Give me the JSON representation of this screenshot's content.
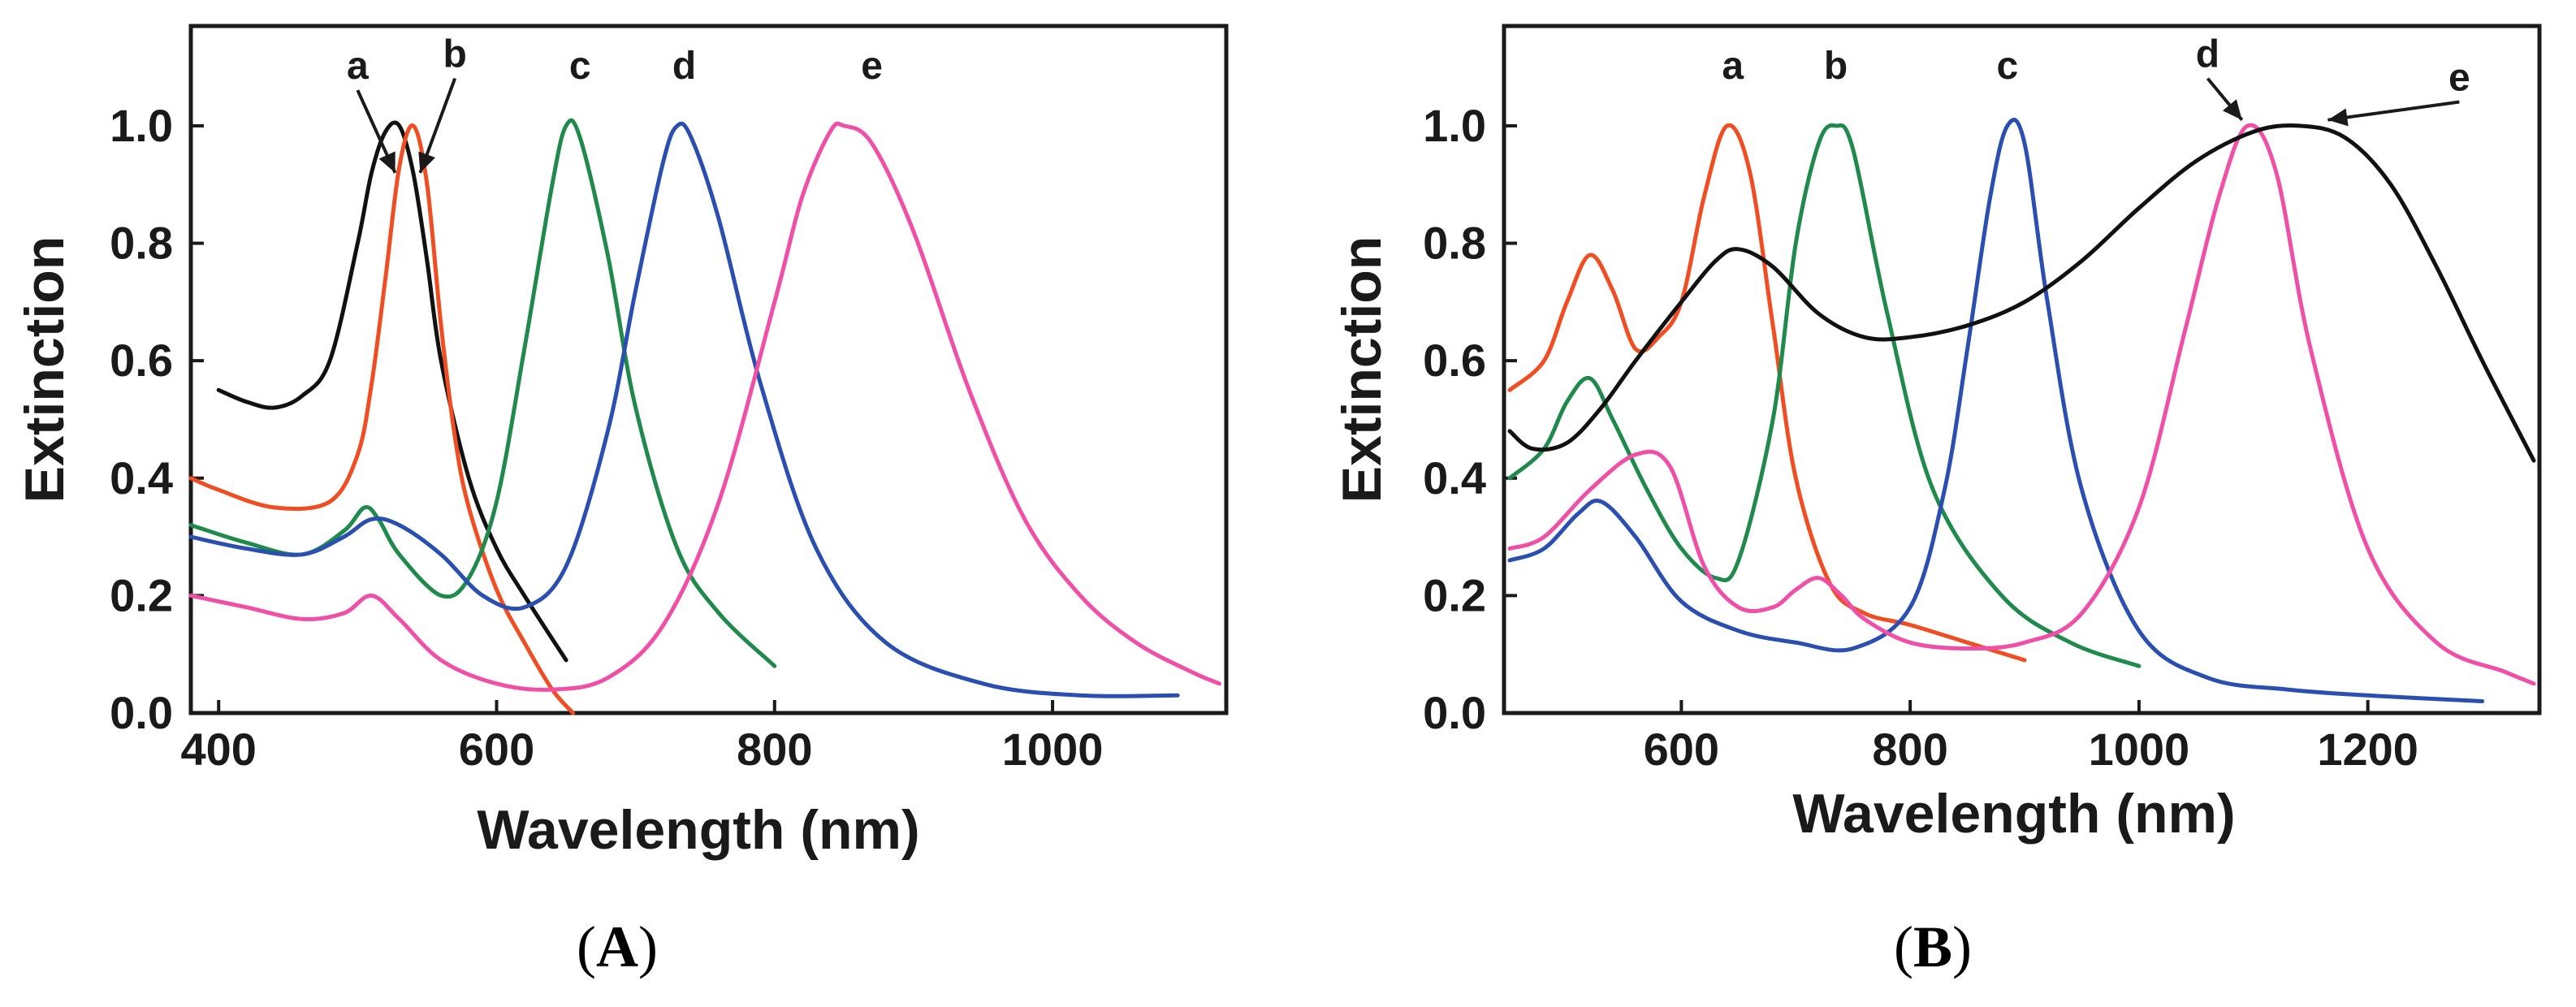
{
  "chart_data": [
    {
      "type": "line",
      "panel": "A",
      "caption_letter": "A",
      "xlabel": "Wavelength (nm)",
      "ylabel": "Extinction",
      "xlim": [
        380,
        1125
      ],
      "ylim": [
        0.0,
        1.17
      ],
      "xticks": [
        400,
        600,
        800,
        1000
      ],
      "yticks": [
        0.0,
        0.2,
        0.4,
        0.6,
        0.8,
        1.0
      ],
      "ytick_labels": [
        "0.0",
        "0.2",
        "0.4",
        "0.6",
        "0.8",
        "1.0"
      ],
      "grid": false,
      "series": [
        {
          "name": "a",
          "color": "#111111",
          "x": [
            400,
            420,
            440,
            460,
            480,
            500,
            510,
            520,
            530,
            540,
            550,
            560,
            580,
            600,
            620,
            650
          ],
          "y": [
            0.55,
            0.53,
            0.52,
            0.54,
            0.6,
            0.8,
            0.92,
            0.99,
            1.0,
            0.92,
            0.77,
            0.6,
            0.4,
            0.28,
            0.2,
            0.09
          ]
        },
        {
          "name": "b",
          "color": "#f04d23",
          "x": [
            380,
            400,
            440,
            480,
            500,
            510,
            520,
            530,
            540,
            550,
            560,
            570,
            580,
            600,
            620,
            640,
            655
          ],
          "y": [
            0.4,
            0.38,
            0.35,
            0.36,
            0.44,
            0.56,
            0.74,
            0.93,
            1.0,
            0.9,
            0.66,
            0.47,
            0.35,
            0.21,
            0.12,
            0.04,
            0.0
          ]
        },
        {
          "name": "c",
          "color": "#1f8a4c",
          "x": [
            380,
            420,
            460,
            490,
            505,
            515,
            530,
            560,
            580,
            600,
            620,
            640,
            650,
            660,
            680,
            700,
            730,
            760,
            800
          ],
          "y": [
            0.32,
            0.29,
            0.27,
            0.31,
            0.35,
            0.33,
            0.27,
            0.2,
            0.23,
            0.36,
            0.62,
            0.9,
            1.0,
            0.98,
            0.78,
            0.52,
            0.28,
            0.17,
            0.08
          ]
        },
        {
          "name": "d",
          "color": "#2a4fb0",
          "x": [
            380,
            420,
            460,
            490,
            510,
            530,
            560,
            590,
            620,
            650,
            680,
            700,
            720,
            730,
            740,
            760,
            790,
            830,
            880,
            950,
            1020,
            1090
          ],
          "y": [
            0.3,
            0.28,
            0.27,
            0.3,
            0.33,
            0.32,
            0.27,
            0.2,
            0.18,
            0.25,
            0.48,
            0.72,
            0.94,
            1.0,
            0.98,
            0.84,
            0.56,
            0.28,
            0.12,
            0.05,
            0.03,
            0.03
          ]
        },
        {
          "name": "e",
          "color": "#ef4fa6",
          "x": [
            380,
            420,
            460,
            490,
            510,
            530,
            560,
            600,
            640,
            680,
            720,
            760,
            800,
            820,
            840,
            850,
            870,
            900,
            940,
            980,
            1020,
            1060,
            1100,
            1120
          ],
          "y": [
            0.2,
            0.18,
            0.16,
            0.17,
            0.2,
            0.16,
            0.09,
            0.05,
            0.04,
            0.06,
            0.15,
            0.36,
            0.7,
            0.88,
            0.99,
            1.0,
            0.97,
            0.82,
            0.55,
            0.33,
            0.2,
            0.12,
            0.07,
            0.05
          ]
        }
      ],
      "annotations": [
        {
          "text": "a",
          "x": 500,
          "y": 1.08,
          "arrow_to": [
            527,
            0.92
          ]
        },
        {
          "text": "b",
          "x": 570,
          "y": 1.1,
          "arrow_to": [
            545,
            0.92
          ]
        },
        {
          "text": "c",
          "x": 660,
          "y": 1.08
        },
        {
          "text": "d",
          "x": 735,
          "y": 1.08
        },
        {
          "text": "e",
          "x": 870,
          "y": 1.08
        }
      ]
    },
    {
      "type": "line",
      "panel": "B",
      "caption_letter": "B",
      "xlabel": "Wavelength (nm)",
      "ylabel": "Extinction",
      "xlim": [
        445,
        1350
      ],
      "ylim": [
        0.0,
        1.17
      ],
      "xticks": [
        600,
        800,
        1000,
        1200
      ],
      "yticks": [
        0.0,
        0.2,
        0.4,
        0.6,
        0.8,
        1.0
      ],
      "ytick_labels": [
        "0.0",
        "0.2",
        "0.4",
        "0.6",
        "0.8",
        "1.0"
      ],
      "grid": false,
      "series": [
        {
          "name": "a",
          "color": "#f04d23",
          "x": [
            450,
            480,
            500,
            520,
            540,
            560,
            580,
            600,
            620,
            640,
            660,
            680,
            700,
            730,
            760,
            800,
            850,
            900
          ],
          "y": [
            0.55,
            0.6,
            0.7,
            0.78,
            0.72,
            0.62,
            0.64,
            0.7,
            0.88,
            1.0,
            0.92,
            0.66,
            0.4,
            0.22,
            0.17,
            0.15,
            0.12,
            0.09
          ]
        },
        {
          "name": "b",
          "color": "#1f8a4c",
          "x": [
            450,
            480,
            500,
            520,
            540,
            570,
            600,
            630,
            650,
            680,
            700,
            720,
            735,
            750,
            780,
            820,
            880,
            940,
            1000
          ],
          "y": [
            0.4,
            0.45,
            0.53,
            0.57,
            0.5,
            0.38,
            0.28,
            0.23,
            0.26,
            0.5,
            0.8,
            0.97,
            1.0,
            0.96,
            0.68,
            0.38,
            0.2,
            0.12,
            0.08
          ]
        },
        {
          "name": "c",
          "color": "#2a4fb0",
          "x": [
            450,
            480,
            510,
            530,
            560,
            600,
            650,
            700,
            750,
            800,
            830,
            850,
            870,
            885,
            900,
            920,
            950,
            1000,
            1060,
            1130,
            1200,
            1300
          ],
          "y": [
            0.26,
            0.28,
            0.34,
            0.36,
            0.3,
            0.19,
            0.14,
            0.12,
            0.11,
            0.18,
            0.38,
            0.62,
            0.88,
            1.0,
            0.97,
            0.7,
            0.38,
            0.14,
            0.06,
            0.04,
            0.03,
            0.02
          ]
        },
        {
          "name": "d",
          "color": "#ef4fa6",
          "x": [
            450,
            480,
            520,
            560,
            590,
            620,
            650,
            680,
            700,
            720,
            740,
            760,
            800,
            850,
            900,
            950,
            1000,
            1040,
            1070,
            1095,
            1120,
            1150,
            1200,
            1260,
            1320,
            1345
          ],
          "y": [
            0.28,
            0.3,
            0.38,
            0.44,
            0.42,
            0.25,
            0.18,
            0.18,
            0.21,
            0.23,
            0.2,
            0.16,
            0.12,
            0.11,
            0.12,
            0.17,
            0.35,
            0.65,
            0.88,
            1.0,
            0.92,
            0.62,
            0.28,
            0.12,
            0.07,
            0.05
          ]
        },
        {
          "name": "e",
          "color": "#111111",
          "x": [
            450,
            470,
            500,
            530,
            560,
            600,
            630,
            650,
            680,
            720,
            760,
            800,
            850,
            900,
            950,
            1000,
            1050,
            1100,
            1140,
            1180,
            1220,
            1260,
            1300,
            1345
          ],
          "y": [
            0.48,
            0.45,
            0.46,
            0.52,
            0.6,
            0.7,
            0.77,
            0.79,
            0.76,
            0.68,
            0.64,
            0.64,
            0.66,
            0.7,
            0.77,
            0.86,
            0.94,
            0.99,
            1.0,
            0.98,
            0.9,
            0.76,
            0.6,
            0.43
          ]
        }
      ],
      "annotations": [
        {
          "text": "a",
          "x": 645,
          "y": 1.08
        },
        {
          "text": "b",
          "x": 735,
          "y": 1.08
        },
        {
          "text": "c",
          "x": 885,
          "y": 1.08
        },
        {
          "text": "d",
          "x": 1060,
          "y": 1.1,
          "arrow_to": [
            1090,
            1.01
          ]
        },
        {
          "text": "e",
          "x": 1280,
          "y": 1.06,
          "arrow_to": [
            1165,
            1.01
          ]
        }
      ]
    }
  ]
}
